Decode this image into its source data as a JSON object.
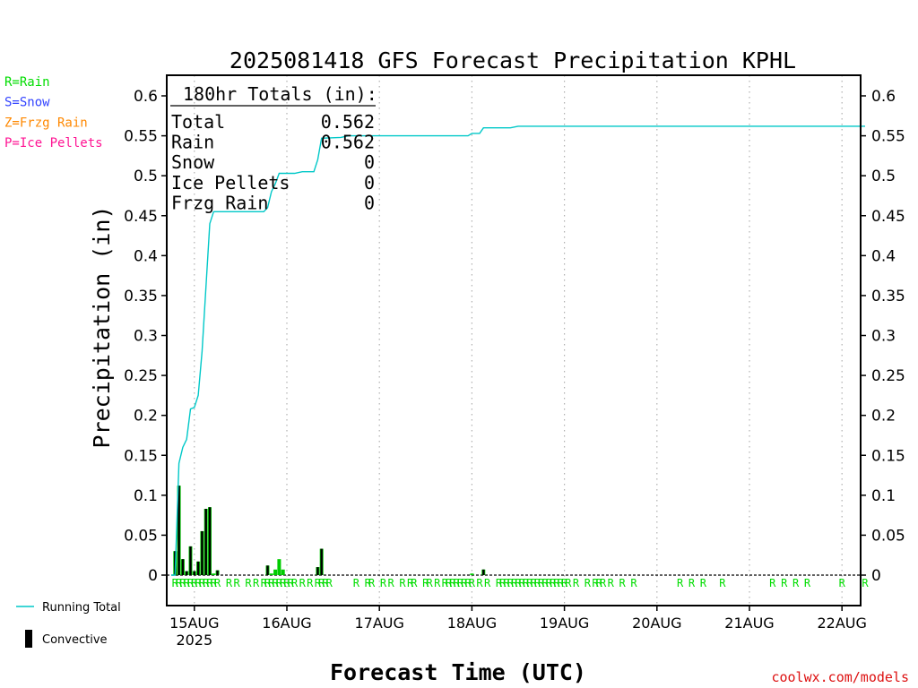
{
  "chart_data": {
    "type": "bar",
    "title": "2025081418 GFS Forecast Precipitation KPHL",
    "xlabel": "Forecast Time (UTC)",
    "ylabel": "Precipitation (in)",
    "ylim": [
      0,
      0.62
    ],
    "yticks": [
      0,
      0.05,
      0.1,
      0.15,
      0.2,
      0.25,
      0.3,
      0.35,
      0.4,
      0.45,
      0.5,
      0.55,
      0.6
    ],
    "ytick_labels": [
      "0",
      "0.05",
      "0.1",
      "0.15",
      "0.2",
      "0.25",
      "0.3",
      "0.35",
      "0.4",
      "0.45",
      "0.5",
      "0.55",
      "0.6"
    ],
    "x_unit": "forecast hours from 2025-08-14 18 UTC",
    "xlim": [
      0,
      180
    ],
    "x_ticks": [
      {
        "hour": 6,
        "label": "15AUG",
        "sublabel": "2025"
      },
      {
        "hour": 30,
        "label": "16AUG"
      },
      {
        "hour": 54,
        "label": "17AUG"
      },
      {
        "hour": 78,
        "label": "18AUG"
      },
      {
        "hour": 102,
        "label": "19AUG"
      },
      {
        "hour": 126,
        "label": "20AUG"
      },
      {
        "hour": 150,
        "label": "21AUG"
      },
      {
        "hour": 174,
        "label": "22AUG"
      }
    ],
    "grid": "vertical dotted at each day",
    "legend_position": "lower-left, outside plot",
    "legend": [
      {
        "label": "Running Total",
        "color": "#00c8c8"
      },
      {
        "label": "Convective",
        "color": "#000000"
      }
    ],
    "type_key": [
      {
        "label": "R=Rain",
        "color": "#00dd00"
      },
      {
        "label": "S=Snow",
        "color": "#3344ff"
      },
      {
        "label": "Z=Frzg Rain",
        "color": "#ff8800"
      },
      {
        "label": "P=Ice Pellets",
        "color": "#ff1493"
      }
    ],
    "totals_box": {
      "header": "180hr Totals (in):",
      "rows": [
        {
          "label": "Total",
          "value": "0.562"
        },
        {
          "label": "Rain",
          "value": "0.562"
        },
        {
          "label": "Snow",
          "value": "0"
        },
        {
          "label": "Ice Pellets",
          "value": "0"
        },
        {
          "label": "Frzg Rain",
          "value": "0"
        }
      ]
    },
    "series": [
      {
        "name": "Running Total",
        "kind": "line",
        "color": "#00c8c8",
        "points": [
          [
            0,
            0
          ],
          [
            1,
            0
          ],
          [
            2,
            0.14
          ],
          [
            3,
            0.16
          ],
          [
            4,
            0.17
          ],
          [
            5,
            0.208
          ],
          [
            6,
            0.21
          ],
          [
            7,
            0.225
          ],
          [
            8,
            0.28
          ],
          [
            9,
            0.36
          ],
          [
            10,
            0.44
          ],
          [
            11,
            0.455
          ],
          [
            13,
            0.455
          ],
          [
            20,
            0.455
          ],
          [
            24,
            0.455
          ],
          [
            25,
            0.46
          ],
          [
            26,
            0.48
          ],
          [
            27,
            0.49
          ],
          [
            28,
            0.503
          ],
          [
            32,
            0.503
          ],
          [
            34,
            0.505
          ],
          [
            37,
            0.505
          ],
          [
            38,
            0.52
          ],
          [
            39,
            0.547
          ],
          [
            44,
            0.548
          ],
          [
            46,
            0.55
          ],
          [
            60,
            0.55
          ],
          [
            77,
            0.55
          ],
          [
            78,
            0.553
          ],
          [
            80,
            0.553
          ],
          [
            81,
            0.56
          ],
          [
            88,
            0.56
          ],
          [
            90,
            0.562
          ],
          [
            180,
            0.562
          ]
        ]
      },
      {
        "name": "Total",
        "kind": "bar",
        "color": "#00cc00",
        "bars": [
          [
            1,
            0.03
          ],
          [
            2,
            0.112
          ],
          [
            3,
            0.02
          ],
          [
            4,
            0.005
          ],
          [
            5,
            0.036
          ],
          [
            6,
            0.005
          ],
          [
            7,
            0.017
          ],
          [
            8,
            0.055
          ],
          [
            9,
            0.083
          ],
          [
            10,
            0.085
          ],
          [
            11,
            0.002
          ],
          [
            12,
            0.006
          ],
          [
            25,
            0.012
          ],
          [
            26,
            0.002
          ],
          [
            27,
            0.007
          ],
          [
            28,
            0.02
          ],
          [
            29,
            0.007
          ],
          [
            38,
            0.01
          ],
          [
            39,
            0.033
          ],
          [
            78,
            0.002
          ],
          [
            81,
            0.007
          ]
        ]
      },
      {
        "name": "Convective",
        "kind": "bar",
        "color": "#000000",
        "bars": [
          [
            1,
            0.03
          ],
          [
            2,
            0.112
          ],
          [
            3,
            0.02
          ],
          [
            4,
            0.005
          ],
          [
            5,
            0.036
          ],
          [
            6,
            0.005
          ],
          [
            7,
            0.017
          ],
          [
            8,
            0.055
          ],
          [
            9,
            0.083
          ],
          [
            10,
            0.085
          ],
          [
            12,
            0.006
          ],
          [
            25,
            0.012
          ],
          [
            38,
            0.01
          ],
          [
            39,
            0.033
          ],
          [
            81,
            0.007
          ]
        ]
      }
    ],
    "precip_type_markers": {
      "symbol": "R",
      "color": "#00dd00",
      "hours": [
        1,
        2,
        3,
        4,
        5,
        6,
        7,
        8,
        9,
        10,
        11,
        12,
        15,
        17,
        20,
        22,
        24,
        25,
        26,
        27,
        28,
        29,
        30,
        31,
        32,
        34,
        36,
        38,
        39,
        40,
        41,
        48,
        51,
        52,
        55,
        57,
        60,
        62,
        63,
        66,
        67,
        69,
        71,
        72,
        73,
        74,
        75,
        76,
        77,
        78,
        80,
        82,
        85,
        86,
        87,
        88,
        89,
        90,
        91,
        92,
        93,
        94,
        95,
        96,
        97,
        98,
        99,
        100,
        101,
        102,
        103,
        105,
        108,
        110,
        111,
        112,
        114,
        117,
        120,
        132,
        135,
        138,
        143,
        156,
        159,
        162,
        165,
        174,
        180
      ]
    }
  },
  "branding": {
    "credit": "coolwx.com/models"
  }
}
